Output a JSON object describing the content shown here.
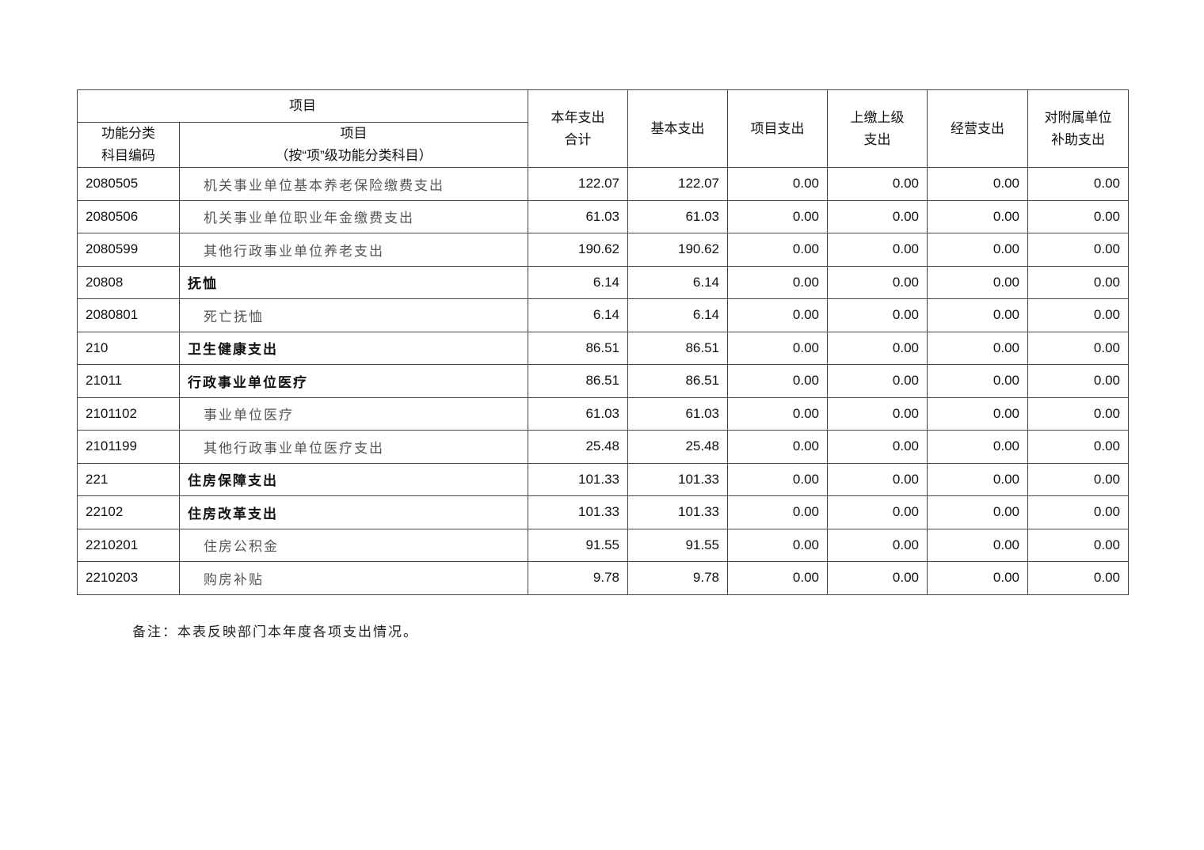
{
  "header": {
    "item_group": "项目",
    "code": "功能分类\n科目编码",
    "item": "项目\n（按“项”级功能分类科目）",
    "total": "本年支出\n合计",
    "basic": "基本支出",
    "project": "项目支出",
    "upper": "上缴上级\n支出",
    "business": "经营支出",
    "subsidiary": "对附属单位\n补助支出"
  },
  "rows": [
    {
      "code": "2080505",
      "name": "机关事业单位基本养老保险缴费支出",
      "bold": false,
      "v": [
        "122.07",
        "122.07",
        "0.00",
        "0.00",
        "0.00",
        "0.00"
      ]
    },
    {
      "code": "2080506",
      "name": "机关事业单位职业年金缴费支出",
      "bold": false,
      "v": [
        "61.03",
        "61.03",
        "0.00",
        "0.00",
        "0.00",
        "0.00"
      ]
    },
    {
      "code": "2080599",
      "name": "其他行政事业单位养老支出",
      "bold": false,
      "v": [
        "190.62",
        "190.62",
        "0.00",
        "0.00",
        "0.00",
        "0.00"
      ]
    },
    {
      "code": "20808",
      "name": "抚恤",
      "bold": true,
      "v": [
        "6.14",
        "6.14",
        "0.00",
        "0.00",
        "0.00",
        "0.00"
      ]
    },
    {
      "code": "2080801",
      "name": "死亡抚恤",
      "bold": false,
      "v": [
        "6.14",
        "6.14",
        "0.00",
        "0.00",
        "0.00",
        "0.00"
      ]
    },
    {
      "code": "210",
      "name": "卫生健康支出",
      "bold": true,
      "v": [
        "86.51",
        "86.51",
        "0.00",
        "0.00",
        "0.00",
        "0.00"
      ]
    },
    {
      "code": "21011",
      "name": "行政事业单位医疗",
      "bold": true,
      "v": [
        "86.51",
        "86.51",
        "0.00",
        "0.00",
        "0.00",
        "0.00"
      ]
    },
    {
      "code": "2101102",
      "name": "事业单位医疗",
      "bold": false,
      "v": [
        "61.03",
        "61.03",
        "0.00",
        "0.00",
        "0.00",
        "0.00"
      ]
    },
    {
      "code": "2101199",
      "name": "其他行政事业单位医疗支出",
      "bold": false,
      "v": [
        "25.48",
        "25.48",
        "0.00",
        "0.00",
        "0.00",
        "0.00"
      ]
    },
    {
      "code": "221",
      "name": "住房保障支出",
      "bold": true,
      "v": [
        "101.33",
        "101.33",
        "0.00",
        "0.00",
        "0.00",
        "0.00"
      ]
    },
    {
      "code": "22102",
      "name": "住房改革支出",
      "bold": true,
      "v": [
        "101.33",
        "101.33",
        "0.00",
        "0.00",
        "0.00",
        "0.00"
      ]
    },
    {
      "code": "2210201",
      "name": "住房公积金",
      "bold": false,
      "v": [
        "91.55",
        "91.55",
        "0.00",
        "0.00",
        "0.00",
        "0.00"
      ]
    },
    {
      "code": "2210203",
      "name": "购房补贴",
      "bold": false,
      "v": [
        "9.78",
        "9.78",
        "0.00",
        "0.00",
        "0.00",
        "0.00"
      ]
    }
  ],
  "note": "备注：本表反映部门本年度各项支出情况。"
}
